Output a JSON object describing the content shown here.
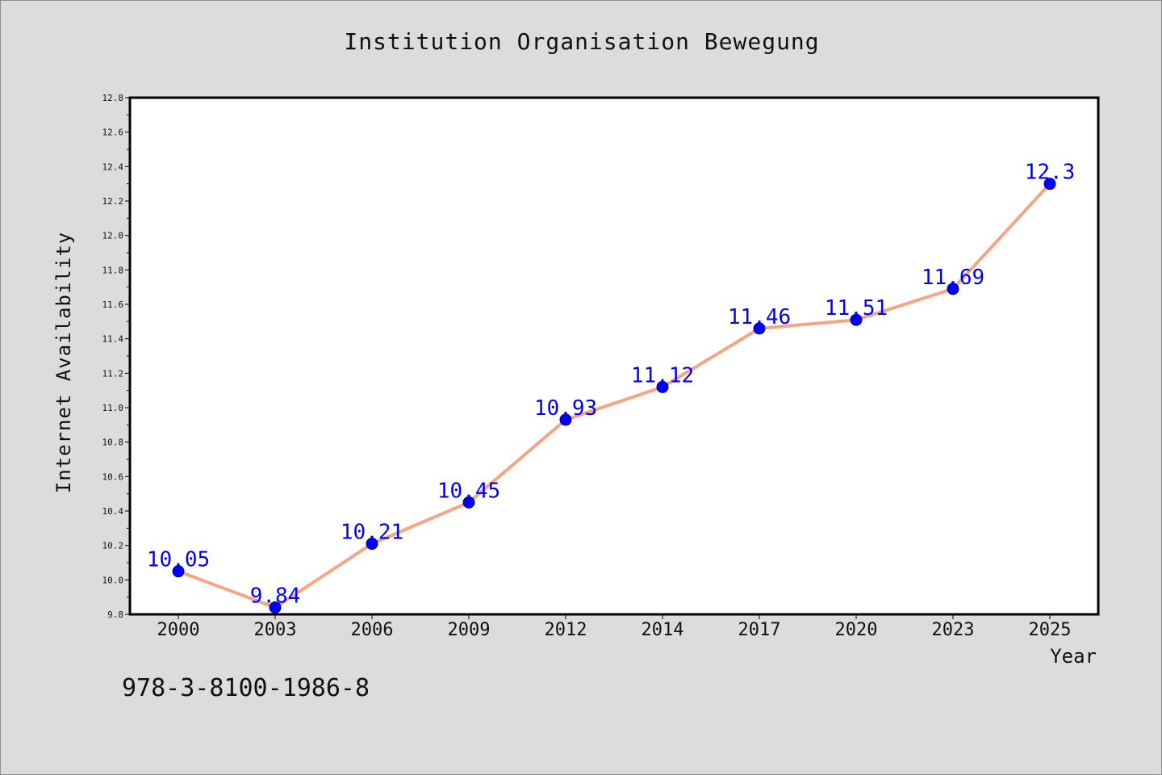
{
  "chart_data": {
    "type": "line",
    "title": "Institution Organisation Bewegung",
    "xlabel": "Year",
    "ylabel": "Internet Availability",
    "categories": [
      "2000",
      "2003",
      "2006",
      "2009",
      "2012",
      "2014",
      "2017",
      "2020",
      "2023",
      "2025"
    ],
    "series": [
      {
        "values": [
          10.05,
          9.84,
          10.21,
          10.45,
          10.93,
          11.12,
          11.46,
          11.51,
          11.69,
          12.3
        ],
        "labels": [
          "10.05",
          "9.84",
          "10.21",
          "10.45",
          "10.93",
          "11.12",
          "11.46",
          "11.51",
          "11.69",
          "12.3"
        ]
      }
    ],
    "ylim": [
      9.8,
      12.8
    ],
    "yticks": [
      "9.8",
      "10.0",
      "10.2",
      "10.4",
      "10.6",
      "10.8",
      "11.0",
      "11.2",
      "11.4",
      "11.6",
      "11.8",
      "12.0",
      "12.2",
      "12.4",
      "12.6",
      "12.8"
    ],
    "grid": false,
    "colors": {
      "line": "#f4a582",
      "marker": "#0000ff",
      "marker_edge": "#00008b",
      "data_label": "#0000ff",
      "background": "#dcdcdc",
      "plot_background": "#ffffff"
    }
  },
  "footer": {
    "code": "978-3-8100-1986-8"
  }
}
